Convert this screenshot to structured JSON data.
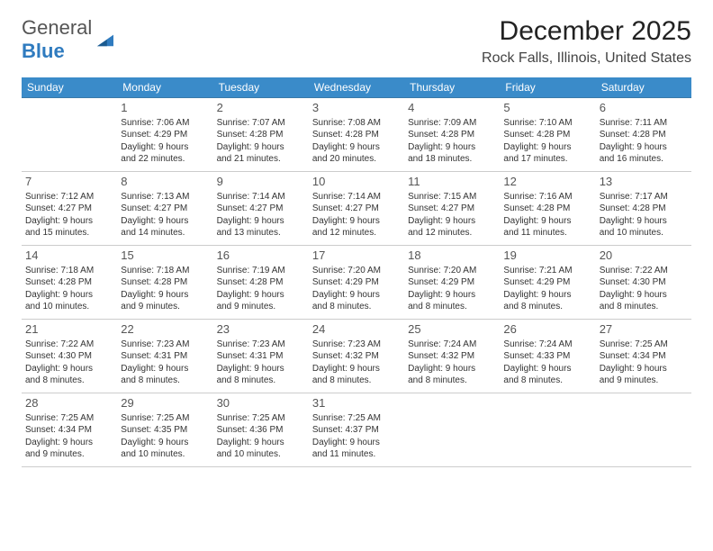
{
  "logo": {
    "text1": "General",
    "text2": "Blue"
  },
  "title": "December 2025",
  "location": "Rock Falls, Illinois, United States",
  "colors": {
    "headerBg": "#3a8bc9",
    "rowBorder": "#3a7aa8"
  },
  "dayHeaders": [
    "Sunday",
    "Monday",
    "Tuesday",
    "Wednesday",
    "Thursday",
    "Friday",
    "Saturday"
  ],
  "weeks": [
    [
      null,
      {
        "n": "1",
        "sr": "Sunrise: 7:06 AM",
        "ss": "Sunset: 4:29 PM",
        "d1": "Daylight: 9 hours",
        "d2": "and 22 minutes."
      },
      {
        "n": "2",
        "sr": "Sunrise: 7:07 AM",
        "ss": "Sunset: 4:28 PM",
        "d1": "Daylight: 9 hours",
        "d2": "and 21 minutes."
      },
      {
        "n": "3",
        "sr": "Sunrise: 7:08 AM",
        "ss": "Sunset: 4:28 PM",
        "d1": "Daylight: 9 hours",
        "d2": "and 20 minutes."
      },
      {
        "n": "4",
        "sr": "Sunrise: 7:09 AM",
        "ss": "Sunset: 4:28 PM",
        "d1": "Daylight: 9 hours",
        "d2": "and 18 minutes."
      },
      {
        "n": "5",
        "sr": "Sunrise: 7:10 AM",
        "ss": "Sunset: 4:28 PM",
        "d1": "Daylight: 9 hours",
        "d2": "and 17 minutes."
      },
      {
        "n": "6",
        "sr": "Sunrise: 7:11 AM",
        "ss": "Sunset: 4:28 PM",
        "d1": "Daylight: 9 hours",
        "d2": "and 16 minutes."
      }
    ],
    [
      {
        "n": "7",
        "sr": "Sunrise: 7:12 AM",
        "ss": "Sunset: 4:27 PM",
        "d1": "Daylight: 9 hours",
        "d2": "and 15 minutes."
      },
      {
        "n": "8",
        "sr": "Sunrise: 7:13 AM",
        "ss": "Sunset: 4:27 PM",
        "d1": "Daylight: 9 hours",
        "d2": "and 14 minutes."
      },
      {
        "n": "9",
        "sr": "Sunrise: 7:14 AM",
        "ss": "Sunset: 4:27 PM",
        "d1": "Daylight: 9 hours",
        "d2": "and 13 minutes."
      },
      {
        "n": "10",
        "sr": "Sunrise: 7:14 AM",
        "ss": "Sunset: 4:27 PM",
        "d1": "Daylight: 9 hours",
        "d2": "and 12 minutes."
      },
      {
        "n": "11",
        "sr": "Sunrise: 7:15 AM",
        "ss": "Sunset: 4:27 PM",
        "d1": "Daylight: 9 hours",
        "d2": "and 12 minutes."
      },
      {
        "n": "12",
        "sr": "Sunrise: 7:16 AM",
        "ss": "Sunset: 4:28 PM",
        "d1": "Daylight: 9 hours",
        "d2": "and 11 minutes."
      },
      {
        "n": "13",
        "sr": "Sunrise: 7:17 AM",
        "ss": "Sunset: 4:28 PM",
        "d1": "Daylight: 9 hours",
        "d2": "and 10 minutes."
      }
    ],
    [
      {
        "n": "14",
        "sr": "Sunrise: 7:18 AM",
        "ss": "Sunset: 4:28 PM",
        "d1": "Daylight: 9 hours",
        "d2": "and 10 minutes."
      },
      {
        "n": "15",
        "sr": "Sunrise: 7:18 AM",
        "ss": "Sunset: 4:28 PM",
        "d1": "Daylight: 9 hours",
        "d2": "and 9 minutes."
      },
      {
        "n": "16",
        "sr": "Sunrise: 7:19 AM",
        "ss": "Sunset: 4:28 PM",
        "d1": "Daylight: 9 hours",
        "d2": "and 9 minutes."
      },
      {
        "n": "17",
        "sr": "Sunrise: 7:20 AM",
        "ss": "Sunset: 4:29 PM",
        "d1": "Daylight: 9 hours",
        "d2": "and 8 minutes."
      },
      {
        "n": "18",
        "sr": "Sunrise: 7:20 AM",
        "ss": "Sunset: 4:29 PM",
        "d1": "Daylight: 9 hours",
        "d2": "and 8 minutes."
      },
      {
        "n": "19",
        "sr": "Sunrise: 7:21 AM",
        "ss": "Sunset: 4:29 PM",
        "d1": "Daylight: 9 hours",
        "d2": "and 8 minutes."
      },
      {
        "n": "20",
        "sr": "Sunrise: 7:22 AM",
        "ss": "Sunset: 4:30 PM",
        "d1": "Daylight: 9 hours",
        "d2": "and 8 minutes."
      }
    ],
    [
      {
        "n": "21",
        "sr": "Sunrise: 7:22 AM",
        "ss": "Sunset: 4:30 PM",
        "d1": "Daylight: 9 hours",
        "d2": "and 8 minutes."
      },
      {
        "n": "22",
        "sr": "Sunrise: 7:23 AM",
        "ss": "Sunset: 4:31 PM",
        "d1": "Daylight: 9 hours",
        "d2": "and 8 minutes."
      },
      {
        "n": "23",
        "sr": "Sunrise: 7:23 AM",
        "ss": "Sunset: 4:31 PM",
        "d1": "Daylight: 9 hours",
        "d2": "and 8 minutes."
      },
      {
        "n": "24",
        "sr": "Sunrise: 7:23 AM",
        "ss": "Sunset: 4:32 PM",
        "d1": "Daylight: 9 hours",
        "d2": "and 8 minutes."
      },
      {
        "n": "25",
        "sr": "Sunrise: 7:24 AM",
        "ss": "Sunset: 4:32 PM",
        "d1": "Daylight: 9 hours",
        "d2": "and 8 minutes."
      },
      {
        "n": "26",
        "sr": "Sunrise: 7:24 AM",
        "ss": "Sunset: 4:33 PM",
        "d1": "Daylight: 9 hours",
        "d2": "and 8 minutes."
      },
      {
        "n": "27",
        "sr": "Sunrise: 7:25 AM",
        "ss": "Sunset: 4:34 PM",
        "d1": "Daylight: 9 hours",
        "d2": "and 9 minutes."
      }
    ],
    [
      {
        "n": "28",
        "sr": "Sunrise: 7:25 AM",
        "ss": "Sunset: 4:34 PM",
        "d1": "Daylight: 9 hours",
        "d2": "and 9 minutes."
      },
      {
        "n": "29",
        "sr": "Sunrise: 7:25 AM",
        "ss": "Sunset: 4:35 PM",
        "d1": "Daylight: 9 hours",
        "d2": "and 10 minutes."
      },
      {
        "n": "30",
        "sr": "Sunrise: 7:25 AM",
        "ss": "Sunset: 4:36 PM",
        "d1": "Daylight: 9 hours",
        "d2": "and 10 minutes."
      },
      {
        "n": "31",
        "sr": "Sunrise: 7:25 AM",
        "ss": "Sunset: 4:37 PM",
        "d1": "Daylight: 9 hours",
        "d2": "and 11 minutes."
      },
      null,
      null,
      null
    ]
  ]
}
